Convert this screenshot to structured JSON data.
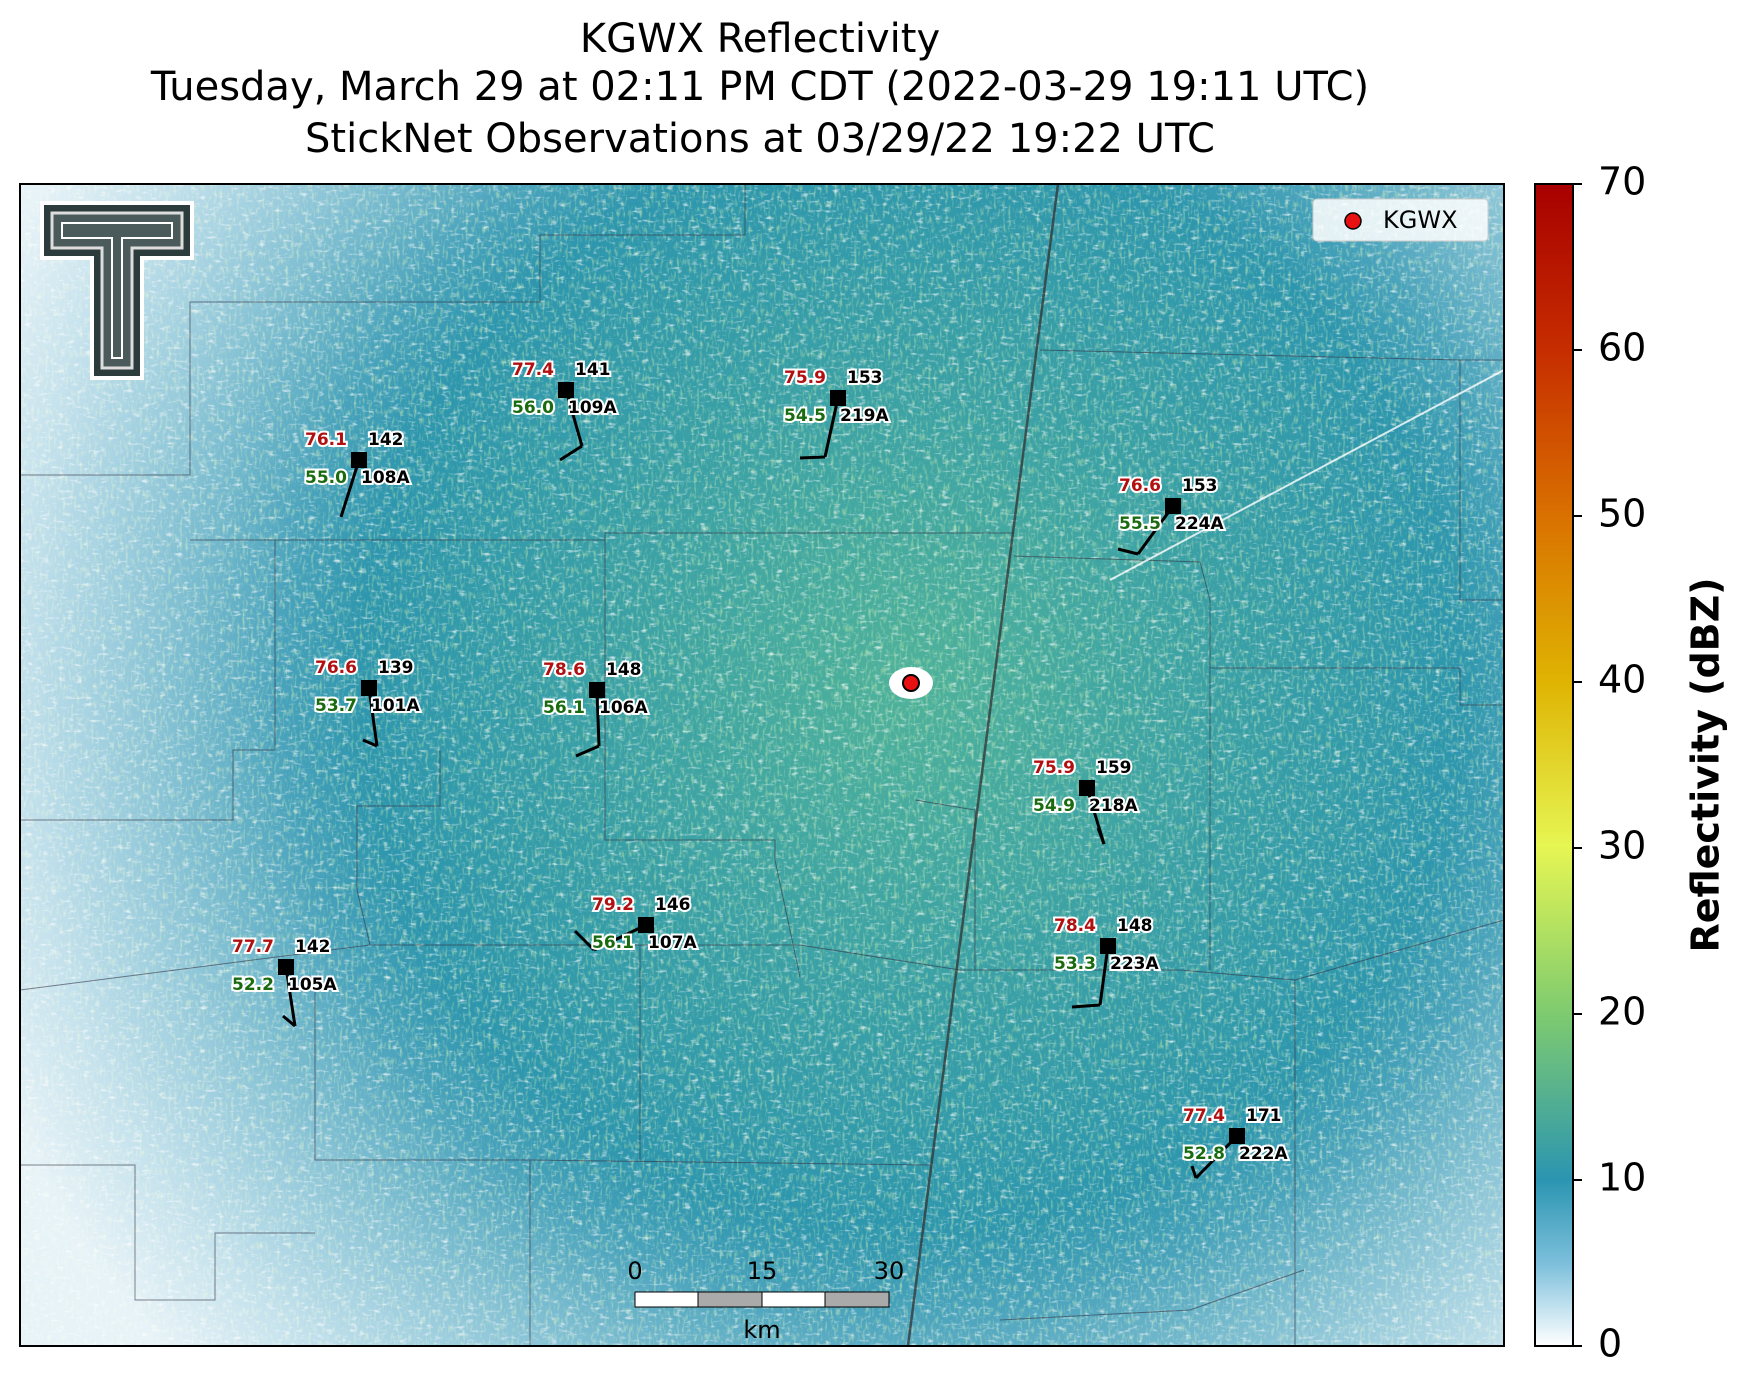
{
  "header": {
    "lines": [
      "KGWX Reflectivity",
      "Tuesday, March 29 at 02:11 PM CDT (2022-03-29 19:11 UTC)",
      "StickNet Observations at 03/29/22 19:22 UTC"
    ]
  },
  "legend": {
    "label": "KGWX"
  },
  "stations": [
    {
      "id": "108A",
      "temp": "76.1",
      "code": "142",
      "dewpoint": "55.0"
    },
    {
      "id": "109A",
      "temp": "77.4",
      "code": "141",
      "dewpoint": "56.0"
    },
    {
      "id": "219A",
      "temp": "75.9",
      "code": "153",
      "dewpoint": "54.5"
    },
    {
      "id": "224A",
      "temp": "76.6",
      "code": "153",
      "dewpoint": "55.5"
    },
    {
      "id": "101A",
      "temp": "76.6",
      "code": "139",
      "dewpoint": "53.7"
    },
    {
      "id": "106A",
      "temp": "78.6",
      "code": "148",
      "dewpoint": "56.1"
    },
    {
      "id": "218A",
      "temp": "75.9",
      "code": "159",
      "dewpoint": "54.9"
    },
    {
      "id": "107A",
      "temp": "79.2",
      "code": "146",
      "dewpoint": "56.1"
    },
    {
      "id": "105A",
      "temp": "77.7",
      "code": "142",
      "dewpoint": "52.2"
    },
    {
      "id": "223A",
      "temp": "78.4",
      "code": "148",
      "dewpoint": "53.3"
    },
    {
      "id": "222A",
      "temp": "77.4",
      "code": "171",
      "dewpoint": "52.8"
    }
  ],
  "colorbar": {
    "label": "Reflectivity (dBZ)",
    "range": [
      0,
      70
    ],
    "ticks": [
      0,
      10,
      20,
      30,
      40,
      50,
      60,
      70
    ]
  },
  "scale_bar": {
    "ticks": [
      "0",
      "15",
      "30"
    ],
    "unit": "km"
  }
}
